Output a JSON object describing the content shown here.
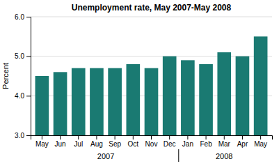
{
  "chart_data": {
    "type": "bar",
    "title": "Unemployment rate, May 2007-May 2008",
    "y_label": "Percent",
    "categories": [
      "May",
      "Jun",
      "Jul",
      "Aug",
      "Sep",
      "Oct",
      "Nov",
      "Dec",
      "Jan",
      "Feb",
      "Mar",
      "Apr",
      "May"
    ],
    "values": [
      4.5,
      4.6,
      4.7,
      4.7,
      4.7,
      4.8,
      4.7,
      5.0,
      4.9,
      4.8,
      5.1,
      5.0,
      5.5
    ],
    "color": "#1a7a72",
    "ylim": [
      3.0,
      6.0
    ],
    "yticks": [
      {
        "value": 3.0,
        "label": "3.0"
      },
      {
        "value": 4.0,
        "label": "4.0"
      },
      {
        "value": 5.0,
        "label": "5.0"
      },
      {
        "value": 6.0,
        "label": "6.0"
      }
    ],
    "grid": true,
    "annotations": [
      {
        "text": "2007",
        "span": [
          0,
          7
        ]
      },
      {
        "text": "2008",
        "span": [
          8,
          12
        ]
      }
    ]
  }
}
